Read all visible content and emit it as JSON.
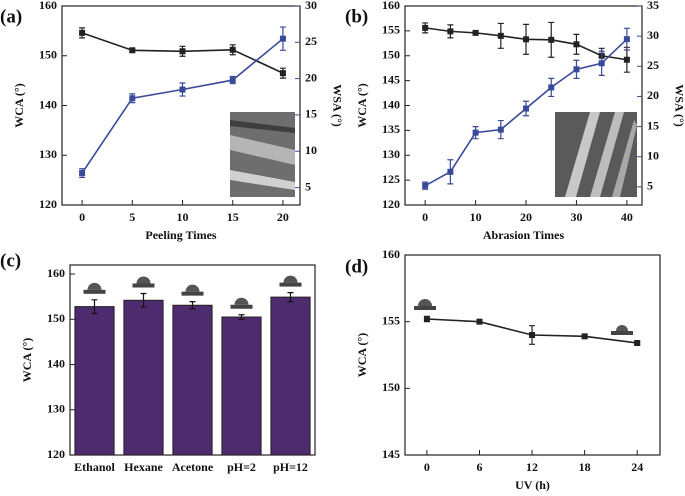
{
  "chart_data": [
    {
      "type": "line",
      "label": "(a)",
      "x": [
        0,
        5,
        10,
        15,
        20
      ],
      "xlim": [
        -2,
        21.7
      ],
      "xticks": [
        0,
        5,
        10,
        15,
        20
      ],
      "xlabel": "Peeling Times",
      "ylabel": "WCA (°)",
      "ylim": [
        120,
        160
      ],
      "yticks": [
        120,
        130,
        140,
        150,
        160
      ],
      "y2label": "WSA (°)",
      "y2lim": [
        2.6,
        30
      ],
      "y2ticks": [
        5,
        10,
        15,
        20,
        25,
        30
      ],
      "y2color": "#3a4a9a",
      "series": [
        {
          "color": "#222222",
          "values": [
            154.6,
            151.1,
            150.9,
            151.2,
            146.5
          ],
          "errors": [
            1.0,
            0.3,
            1.0,
            1.0,
            1.0
          ]
        },
        {
          "color": "#3a4a9a",
          "axis": "y2",
          "values": [
            7.0,
            17.3,
            18.5,
            19.8,
            25.5
          ],
          "errors": [
            0.6,
            0.6,
            0.9,
            0.5,
            1.6
          ]
        }
      ]
    },
    {
      "type": "line",
      "label": "(b)",
      "x": [
        0,
        5,
        10,
        15,
        20,
        25,
        30,
        35,
        40
      ],
      "xlim": [
        -4,
        43
      ],
      "xticks": [
        0,
        10,
        20,
        30,
        40
      ],
      "xlabel": "Abrasion Times",
      "ylabel": "WCA (°)",
      "ylim": [
        120,
        160
      ],
      "yticks": [
        120,
        125,
        130,
        135,
        140,
        145,
        150,
        155,
        160
      ],
      "y2label": "WSA (°)",
      "y2lim": [
        2,
        35
      ],
      "y2ticks": [
        5,
        10,
        15,
        20,
        25,
        30,
        35
      ],
      "y2color": "#3a4a9a",
      "series": [
        {
          "color": "#222222",
          "values": [
            155.6,
            154.9,
            154.6,
            154.0,
            153.3,
            153.2,
            152.3,
            150.0,
            149.2
          ],
          "errors": [
            1.0,
            1.3,
            0.3,
            2.5,
            3.0,
            3.5,
            2.0,
            1.5,
            2.5
          ]
        },
        {
          "color": "#3a4a9a",
          "axis": "y2",
          "values": [
            5.2,
            7.5,
            14.0,
            14.5,
            18.0,
            21.5,
            24.5,
            25.5,
            29.5
          ],
          "errors": [
            0.6,
            2.0,
            1.0,
            1.5,
            1.2,
            1.5,
            1.5,
            2.0,
            1.8
          ]
        }
      ]
    },
    {
      "type": "bar",
      "label": "(c)",
      "categories": [
        "Ethanol",
        "Hexane",
        "Acetone",
        "pH=2",
        "pH=12"
      ],
      "ylabel": "WCA (°)",
      "ylim": [
        120,
        162
      ],
      "yticks": [
        120,
        130,
        140,
        150,
        160
      ],
      "color": "#4e2a6e",
      "values": [
        152.8,
        154.2,
        153.1,
        150.5,
        154.9
      ],
      "errors": [
        1.5,
        1.5,
        0.8,
        0.5,
        1.0
      ]
    },
    {
      "type": "line",
      "label": "(d)",
      "x": [
        0,
        6,
        12,
        18,
        24
      ],
      "xlim": [
        -2.5,
        26.6
      ],
      "xticks": [
        0,
        6,
        12,
        18,
        24
      ],
      "xlabel": "UV (h)",
      "ylabel": "WCA (°)",
      "ylim": [
        145,
        160
      ],
      "yticks": [
        145,
        150,
        155,
        160
      ],
      "series": [
        {
          "color": "#222222",
          "values": [
            155.2,
            155.0,
            154.0,
            153.9,
            153.4
          ],
          "errors": [
            0.2,
            0.1,
            0.7,
            0.1,
            0.1
          ]
        }
      ]
    }
  ]
}
